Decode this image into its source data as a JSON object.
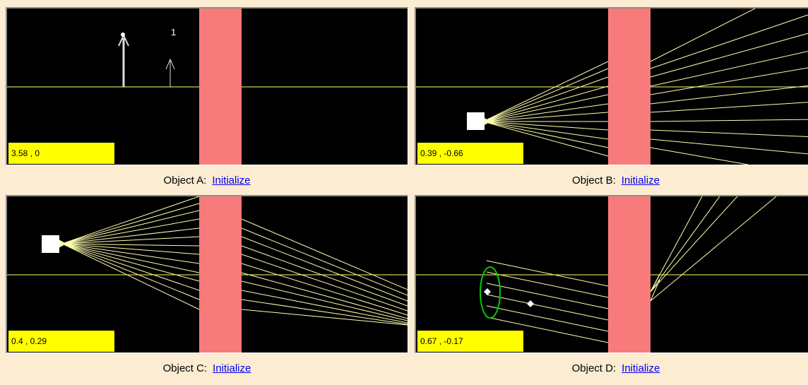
{
  "colors": {
    "background": "#FBECD2",
    "canvas": "#000000",
    "lens": "#F77B7B",
    "axis": "#FFFF66",
    "rays": "#FFFFB0",
    "readout": "#FFFF00",
    "link": "#0000EE",
    "ellipse": "#00CC00",
    "object_box": "#FFFFFF"
  },
  "panels": [
    {
      "key": "a",
      "caption_label": "Object A:",
      "link_label": "Initialize",
      "coord": "3.58 , 0",
      "image_label": "1",
      "icons": [
        "object-arrow-icon",
        "image-arrow-icon"
      ]
    },
    {
      "key": "b",
      "caption_label": "Object B:",
      "link_label": "Initialize",
      "coord": "0.39 , -0.66",
      "icons": [
        "light-source-icon"
      ]
    },
    {
      "key": "c",
      "caption_label": "Object C:",
      "link_label": "Initialize",
      "coord": "0.4 , 0.29",
      "icons": [
        "light-source-icon"
      ]
    },
    {
      "key": "d",
      "caption_label": "Object D:",
      "link_label": "Initialize",
      "coord": "0.67 , -0.17",
      "icons": [
        "ellipse-aperture-icon",
        "focal-point-icon"
      ]
    }
  ]
}
